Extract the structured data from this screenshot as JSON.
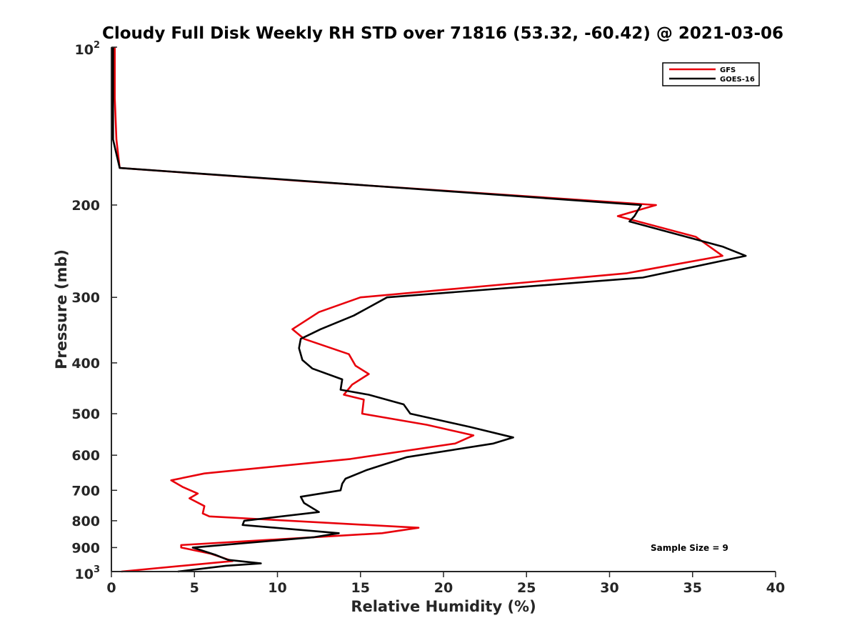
{
  "chart_data": {
    "type": "line",
    "title": "Cloudy Full Disk Weekly RH STD over 71816 (53.32, -60.42) @ 2021-03-06",
    "xlabel": "Relative Humidity (%)",
    "ylabel": "Pressure (mb)",
    "xlim": [
      0,
      40
    ],
    "ylim": [
      100,
      1000
    ],
    "yscale": "log",
    "y_reversed": true,
    "grid": false,
    "legend_position": "top-right",
    "x_ticks": [
      "0",
      "5",
      "10",
      "15",
      "20",
      "25",
      "30",
      "35",
      "40"
    ],
    "y_ticks": [
      {
        "value": 200,
        "label": "200"
      },
      {
        "value": 300,
        "label": "300"
      },
      {
        "value": 400,
        "label": "400"
      },
      {
        "value": 500,
        "label": "500"
      },
      {
        "value": 600,
        "label": "600"
      },
      {
        "value": 700,
        "label": "700"
      },
      {
        "value": 800,
        "label": "800"
      },
      {
        "value": 900,
        "label": "900"
      }
    ],
    "y_end_labels": {
      "top_base": "10",
      "top_exp": "2",
      "bottom_base": "10",
      "bottom_exp": "3"
    },
    "annotation": "Sample Size = 9",
    "series": [
      {
        "name": "GFS",
        "color": "#e8000b",
        "points": [
          [
            0.2,
            100
          ],
          [
            0.2,
            125
          ],
          [
            0.3,
            150
          ],
          [
            0.5,
            170
          ],
          [
            11.5,
            180
          ],
          [
            32.8,
            200
          ],
          [
            30.5,
            210
          ],
          [
            35.2,
            230
          ],
          [
            36.8,
            250
          ],
          [
            31.0,
            270
          ],
          [
            15.0,
            300
          ],
          [
            12.5,
            320
          ],
          [
            10.9,
            345
          ],
          [
            11.6,
            360
          ],
          [
            14.3,
            385
          ],
          [
            14.7,
            405
          ],
          [
            15.5,
            420
          ],
          [
            14.5,
            440
          ],
          [
            14.0,
            460
          ],
          [
            15.2,
            470
          ],
          [
            15.1,
            500
          ],
          [
            19.0,
            525
          ],
          [
            21.8,
            550
          ],
          [
            20.7,
            570
          ],
          [
            14.4,
            610
          ],
          [
            5.6,
            650
          ],
          [
            3.6,
            670
          ],
          [
            4.3,
            690
          ],
          [
            5.2,
            710
          ],
          [
            4.7,
            725
          ],
          [
            5.6,
            750
          ],
          [
            5.5,
            775
          ],
          [
            5.9,
            785
          ],
          [
            18.5,
            825
          ],
          [
            16.3,
            845
          ],
          [
            4.2,
            890
          ],
          [
            4.2,
            900
          ],
          [
            6.0,
            925
          ],
          [
            7.3,
            955
          ],
          [
            0.6,
            1000
          ]
        ]
      },
      {
        "name": "GOES-16",
        "color": "#000000",
        "points": [
          [
            0.1,
            100
          ],
          [
            0.1,
            150
          ],
          [
            0.5,
            170
          ],
          [
            11.7,
            180
          ],
          [
            31.9,
            200
          ],
          [
            31.5,
            210
          ],
          [
            31.2,
            215
          ],
          [
            36.8,
            240
          ],
          [
            38.2,
            250
          ],
          [
            32.0,
            275
          ],
          [
            16.6,
            300
          ],
          [
            14.6,
            325
          ],
          [
            12.6,
            345
          ],
          [
            11.4,
            360
          ],
          [
            11.3,
            375
          ],
          [
            11.5,
            395
          ],
          [
            12.1,
            410
          ],
          [
            13.9,
            430
          ],
          [
            13.8,
            450
          ],
          [
            15.5,
            460
          ],
          [
            17.6,
            480
          ],
          [
            18.0,
            500
          ],
          [
            21.6,
            530
          ],
          [
            24.2,
            555
          ],
          [
            23.0,
            570
          ],
          [
            17.8,
            605
          ],
          [
            15.4,
            640
          ],
          [
            14.1,
            665
          ],
          [
            13.9,
            680
          ],
          [
            13.8,
            700
          ],
          [
            11.4,
            720
          ],
          [
            11.6,
            740
          ],
          [
            12.5,
            770
          ],
          [
            8.0,
            800
          ],
          [
            7.9,
            815
          ],
          [
            13.7,
            845
          ],
          [
            12.2,
            860
          ],
          [
            4.9,
            900
          ],
          [
            6.3,
            930
          ],
          [
            7.0,
            950
          ],
          [
            9.0,
            965
          ],
          [
            6.9,
            975
          ],
          [
            4.0,
            1000
          ]
        ]
      }
    ]
  }
}
